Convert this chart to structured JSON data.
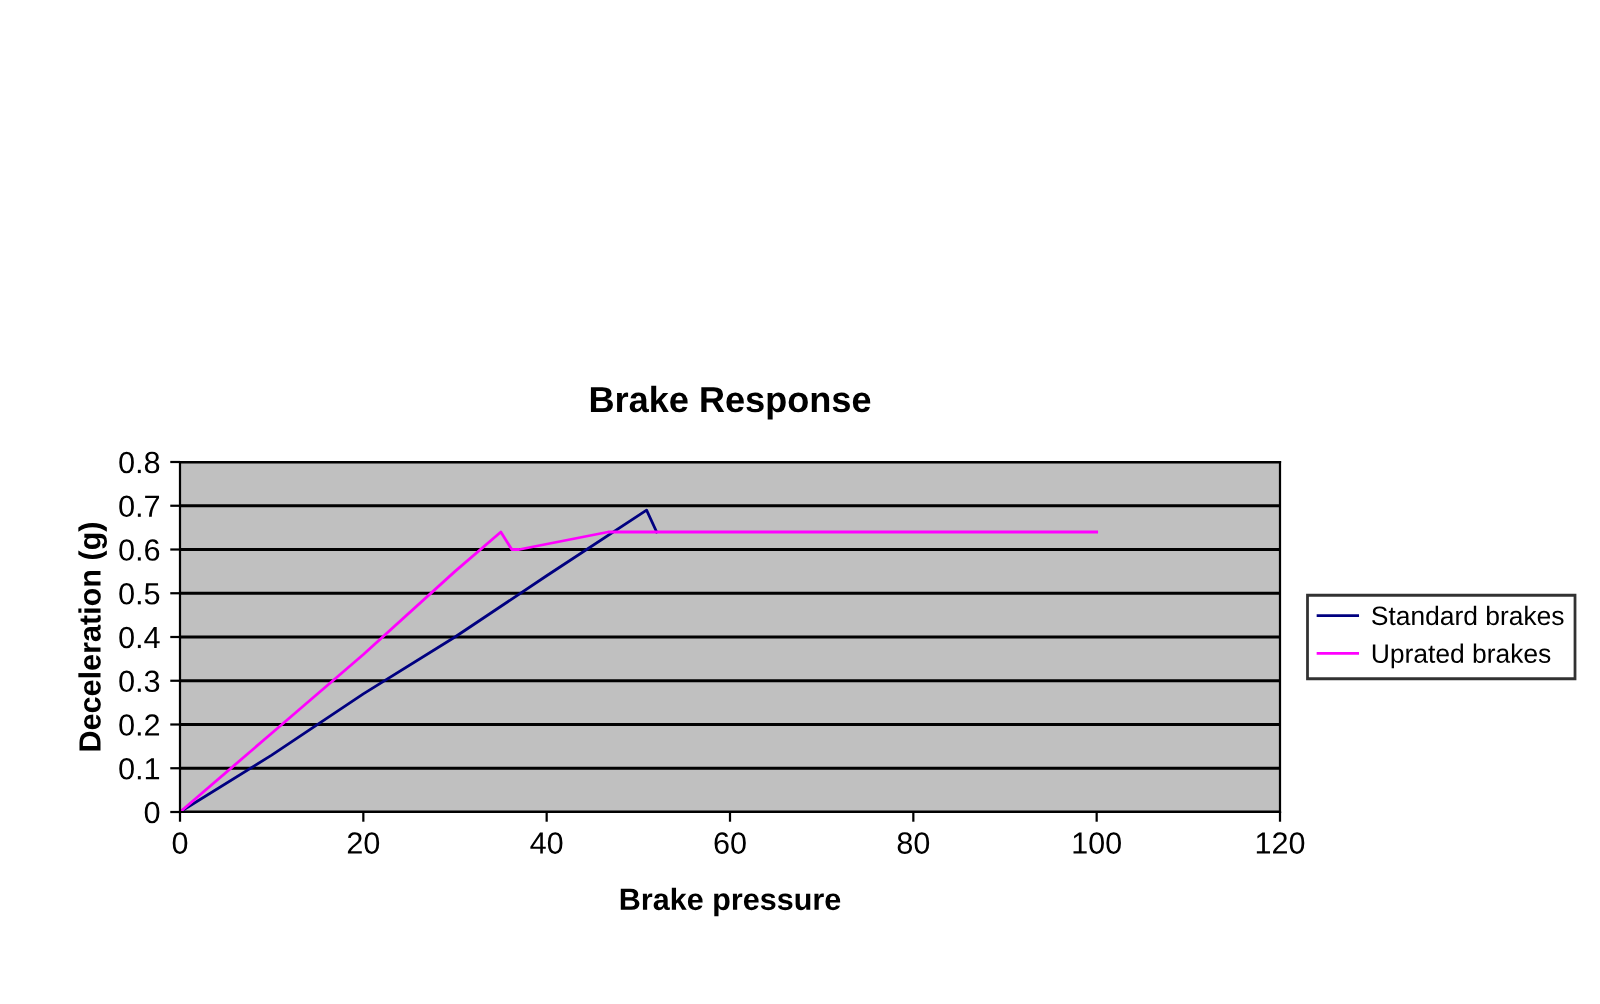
{
  "chart_data": {
    "type": "line",
    "title": "Brake Response",
    "xlabel": "Brake pressure",
    "ylabel": "Deceleration (g)",
    "series": [
      {
        "name": "Standard brakes",
        "color": "#000080",
        "x": [
          0,
          10,
          20,
          30,
          40,
          50.9,
          52
        ],
        "values": [
          0,
          0.13,
          0.27,
          0.4,
          0.54,
          0.69,
          0.64
        ]
      },
      {
        "name": "Uprated brakes",
        "color": "#ff00ff",
        "x": [
          0,
          10,
          20,
          30,
          35,
          36.2,
          37,
          46.7,
          60,
          80,
          100
        ],
        "values": [
          0,
          0.18,
          0.36,
          0.55,
          0.64,
          0.6,
          0.6,
          0.64,
          0.64,
          0.64,
          0.64
        ]
      }
    ],
    "xlim": [
      0,
      120
    ],
    "xticks": [
      0,
      20,
      40,
      60,
      80,
      100,
      120
    ],
    "ylim": [
      0,
      0.8
    ],
    "yticks": [
      0,
      0.1,
      0.2,
      0.3,
      0.4,
      0.5,
      0.6,
      0.7,
      0.8
    ],
    "grid": "y",
    "legend": "right",
    "marker": "none",
    "line_style": "solid"
  }
}
